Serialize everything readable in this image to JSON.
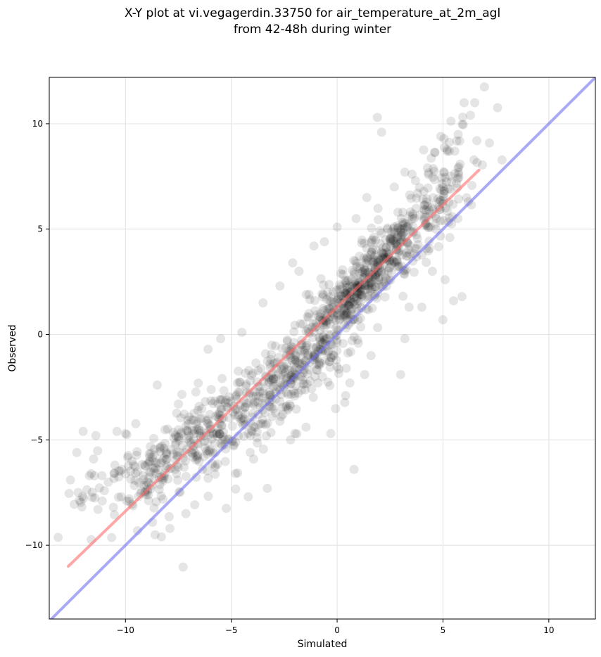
{
  "chart_data": {
    "type": "scatter",
    "title_line1": "X-Y plot at vi.vegagerdin.33750 for air_temperature_at_2m_agl",
    "title_line2": "from 42-48h during winter",
    "xlabel": "Simulated",
    "ylabel": "Observed",
    "xlim": [
      -13.6,
      12.2
    ],
    "ylim": [
      -13.5,
      12.2
    ],
    "xticks": [
      -10,
      -5,
      0,
      5,
      10
    ],
    "yticks": [
      -10,
      -5,
      0,
      5,
      10
    ],
    "xtick_labels": [
      "−10",
      "−5",
      "0",
      "5",
      "10"
    ],
    "ytick_labels": [
      "−10",
      "−5",
      "0",
      "5",
      "10"
    ],
    "grid": true,
    "colors": {
      "points": "#000000",
      "fit_line": "#ff6b6b",
      "identity_line": "#6f6ff0",
      "grid": "#e6e6e6"
    },
    "regression_line": {
      "x": [
        -12.7,
        6.7
      ],
      "y": [
        -11.0,
        7.8
      ]
    },
    "identity_line": {
      "x": [
        -13.6,
        12.2
      ],
      "y": [
        -13.6,
        12.2
      ]
    },
    "point_clusters": [
      {
        "x": -4.8,
        "y": -4.0,
        "sx": 2.0,
        "sy": 1.7,
        "n": 320
      },
      {
        "x": -8.5,
        "y": -6.2,
        "sx": 1.2,
        "sy": 1.1,
        "n": 130
      },
      {
        "x": -1.5,
        "y": -1.2,
        "sx": 1.4,
        "sy": 1.3,
        "n": 190
      },
      {
        "x": 0.6,
        "y": 1.8,
        "sx": 1.0,
        "sy": 1.0,
        "n": 260
      },
      {
        "x": 2.3,
        "y": 3.8,
        "sx": 0.9,
        "sy": 1.1,
        "n": 170
      },
      {
        "x": 4.6,
        "y": 6.4,
        "sx": 1.0,
        "sy": 1.7,
        "n": 150
      },
      {
        "x": -11.5,
        "y": -7.2,
        "sx": 0.8,
        "sy": 0.9,
        "n": 24
      }
    ],
    "scattered_points": [
      [
        -12.6,
        -6.9
      ],
      [
        -12.3,
        -5.6
      ],
      [
        -12.0,
        -4.6
      ],
      [
        -11.7,
        -6.7
      ],
      [
        -11.4,
        -4.8
      ],
      [
        -11.3,
        -8.3
      ],
      [
        -11.1,
        -7.9
      ],
      [
        -10.5,
        -6.2
      ],
      [
        -10.4,
        -4.6
      ],
      [
        -10.2,
        -7.7
      ],
      [
        -10.0,
        -4.7
      ],
      [
        -8.6,
        -9.5
      ],
      [
        -8.5,
        -2.4
      ],
      [
        -8.3,
        -9.6
      ],
      [
        -7.9,
        -9.2
      ],
      [
        -7.5,
        -3.3
      ],
      [
        -6.1,
        -0.7
      ],
      [
        -5.5,
        -0.2
      ],
      [
        -4.5,
        0.1
      ],
      [
        -4.2,
        -7.7
      ],
      [
        -3.3,
        -7.3
      ],
      [
        -3.5,
        1.5
      ],
      [
        -2.7,
        2.3
      ],
      [
        -2.1,
        3.4
      ],
      [
        -1.8,
        3.0
      ],
      [
        -2.2,
        -5.0
      ],
      [
        -0.3,
        -4.7
      ],
      [
        0.4,
        -2.9
      ],
      [
        0.8,
        -6.4
      ],
      [
        1.3,
        -1.9
      ],
      [
        0.9,
        5.5
      ],
      [
        1.9,
        10.3
      ],
      [
        2.1,
        9.6
      ],
      [
        3.0,
        -1.9
      ],
      [
        3.2,
        -0.2
      ],
      [
        3.4,
        1.3
      ],
      [
        4.0,
        1.3
      ],
      [
        4.5,
        3.0
      ],
      [
        5.1,
        2.6
      ],
      [
        5.0,
        0.7
      ],
      [
        5.5,
        1.6
      ],
      [
        5.9,
        1.8
      ],
      [
        5.7,
        5.5
      ],
      [
        6.0,
        11.0
      ],
      [
        6.3,
        10.4
      ],
      [
        6.5,
        11.0
      ],
      [
        6.6,
        9.2
      ],
      [
        6.2,
        6.3
      ],
      [
        5.3,
        8.7
      ],
      [
        4.9,
        9.4
      ],
      [
        3.7,
        7.3
      ],
      [
        3.2,
        7.7
      ],
      [
        2.7,
        7.0
      ],
      [
        1.4,
        6.5
      ],
      [
        0.0,
        5.1
      ],
      [
        -0.6,
        4.4
      ],
      [
        -1.1,
        4.2
      ],
      [
        0.6,
        -2.3
      ],
      [
        1.6,
        -1.0
      ],
      [
        -0.9,
        -2.3
      ]
    ]
  }
}
